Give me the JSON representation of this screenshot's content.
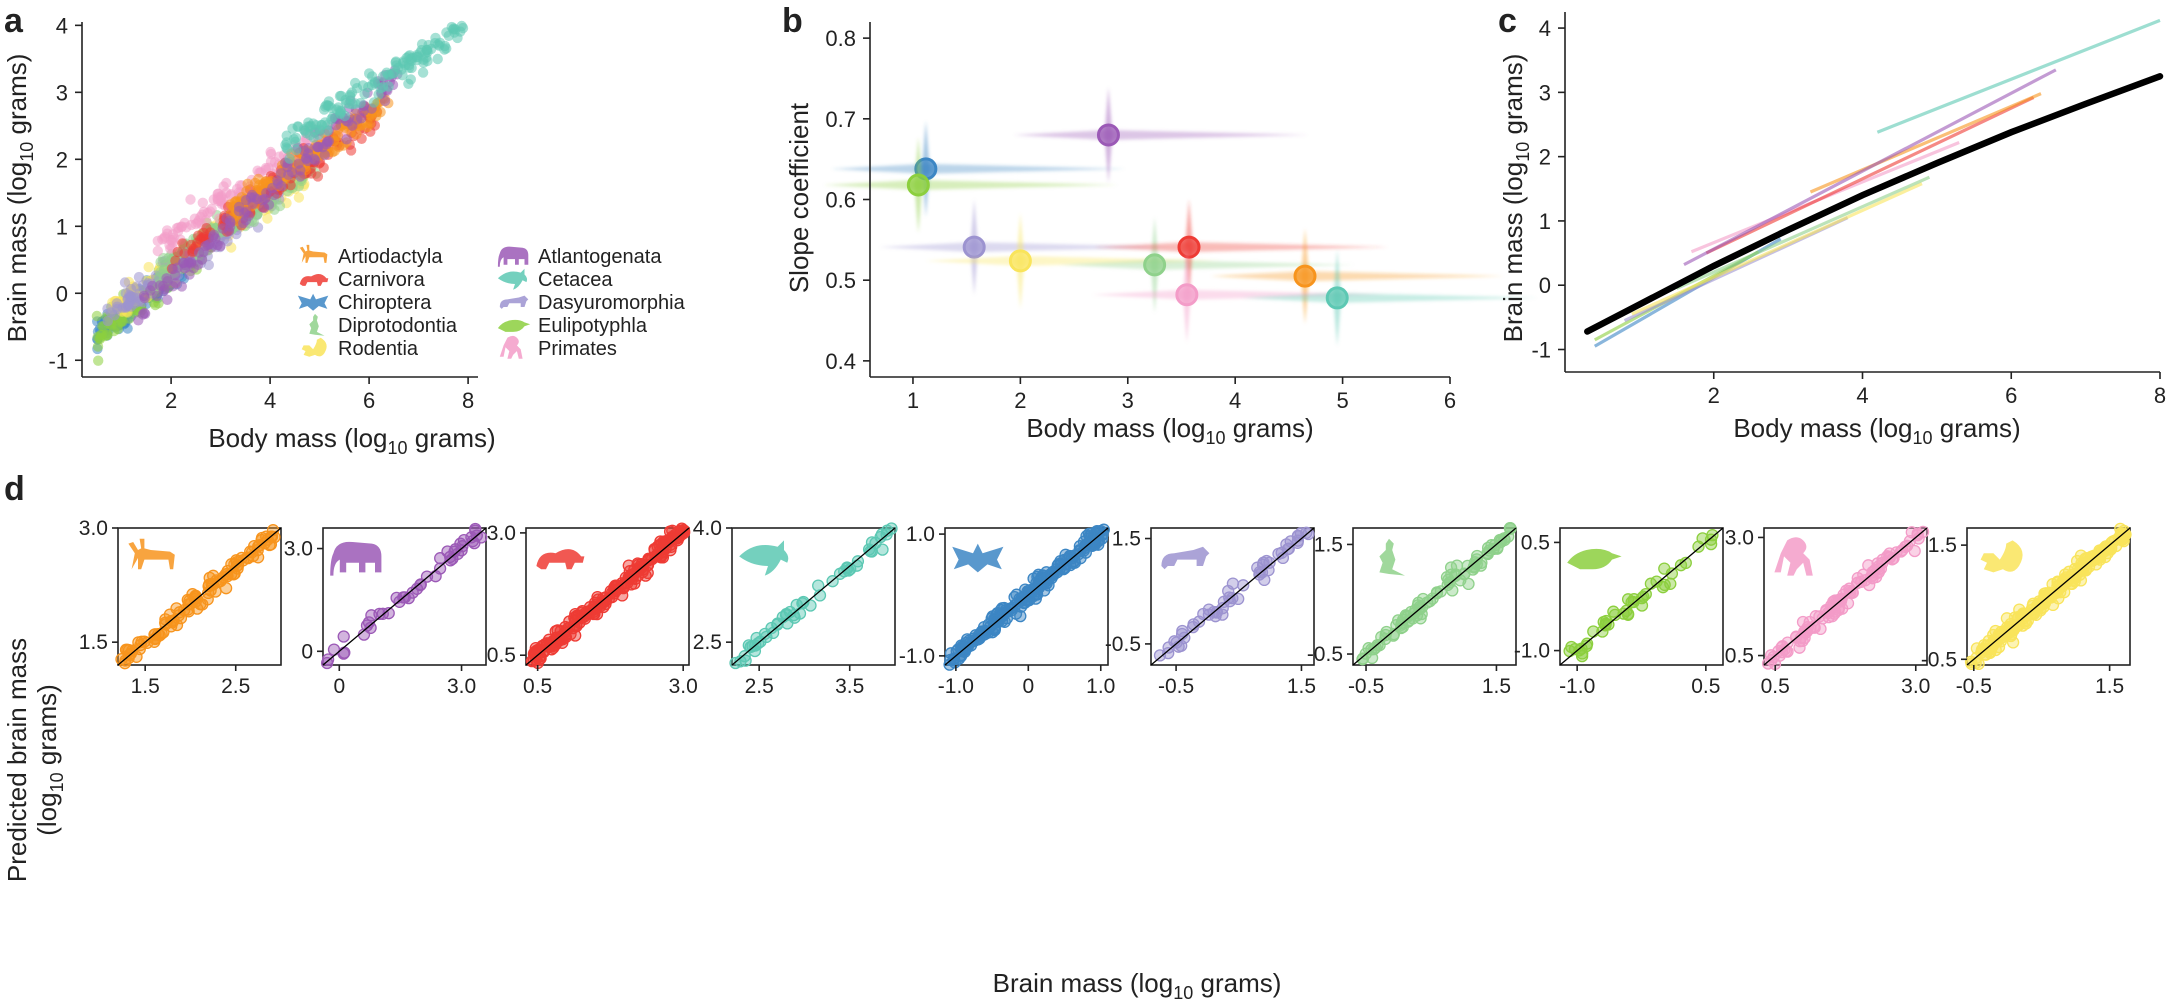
{
  "figure": {
    "panels": [
      {
        "id": "a",
        "letter": "a"
      },
      {
        "id": "b",
        "letter": "b"
      },
      {
        "id": "c",
        "letter": "c"
      },
      {
        "id": "d",
        "letter": "d"
      }
    ]
  },
  "clades": [
    {
      "name": "Artiodactyla",
      "color": "#F7941D",
      "icon": "deer-icon"
    },
    {
      "name": "Carnivora",
      "color": "#EE3B34",
      "icon": "ferret-icon"
    },
    {
      "name": "Chiroptera",
      "color": "#3C86C4",
      "icon": "bat-icon"
    },
    {
      "name": "Diprotodontia",
      "color": "#8FD18B",
      "icon": "kangaroo-icon"
    },
    {
      "name": "Rodentia",
      "color": "#F9E45B",
      "icon": "squirrel-icon"
    },
    {
      "name": "Atlantogenata",
      "color": "#9B59B6",
      "icon": "elephant-icon"
    },
    {
      "name": "Cetacea",
      "color": "#5CC8B3",
      "icon": "dolphin-icon"
    },
    {
      "name": "Dasyuromorphia",
      "color": "#9C93D0",
      "icon": "marsupial-icon"
    },
    {
      "name": "Eulipotyphla",
      "color": "#8CCF3E",
      "icon": "shrew-icon"
    },
    {
      "name": "Primates",
      "color": "#F39CC8",
      "icon": "primate-icon"
    }
  ],
  "chart_data": [
    {
      "panel": "a",
      "type": "scatter",
      "xlabel_main": "Body mass (log",
      "xlabel_sub": "10",
      "xlabel_end": " grams)",
      "ylabel_main": "Brain mass (log",
      "ylabel_sub": "10",
      "ylabel_end": " grams)",
      "xlim": [
        0.2,
        8.2
      ],
      "ylim": [
        -1.25,
        4.05
      ],
      "xticks": [
        "2",
        "4",
        "6",
        "8"
      ],
      "xtick_values": [
        2,
        4,
        6,
        8
      ],
      "yticks": [
        "-1",
        "0",
        "1",
        "2",
        "3",
        "4"
      ],
      "ytick_values": [
        -1,
        0,
        1,
        2,
        3,
        4
      ],
      "legend_position": "bottom-right",
      "clade_ranges": [
        {
          "clade": "Chiroptera",
          "x": [
            0.5,
            2.3
          ],
          "slope": 0.64
        },
        {
          "clade": "Eulipotyphla",
          "x": [
            0.5,
            2.9
          ],
          "slope": 0.62
        },
        {
          "clade": "Rodentia",
          "x": [
            0.8,
            4.8
          ],
          "slope": 0.52
        },
        {
          "clade": "Dasyuromorphia",
          "x": [
            0.7,
            4.2
          ],
          "slope": 0.54
        },
        {
          "clade": "Diprotodontia",
          "x": [
            1.7,
            5.0
          ],
          "slope": 0.52
        },
        {
          "clade": "Primates",
          "x": [
            1.7,
            5.5
          ],
          "slope": 0.48
        },
        {
          "clade": "Carnivora",
          "x": [
            2.0,
            6.2
          ],
          "slope": 0.54
        },
        {
          "clade": "Artiodactyla",
          "x": [
            3.2,
            6.4
          ],
          "slope": 0.5
        },
        {
          "clade": "Atlantogenata",
          "x": [
            1.2,
            6.6
          ],
          "slope": 0.68
        },
        {
          "clade": "Cetacea",
          "x": [
            4.3,
            7.9
          ],
          "slope": 0.48
        }
      ]
    },
    {
      "panel": "b",
      "type": "scatter",
      "xlabel_main": "Body mass (log",
      "xlabel_sub": "10",
      "xlabel_end": " grams)",
      "ylabel": "Slope coefficient",
      "xlim": [
        0.6,
        6.0
      ],
      "ylim": [
        0.38,
        0.82
      ],
      "xticks": [
        "1",
        "2",
        "3",
        "4",
        "5",
        "6"
      ],
      "xtick_values": [
        1,
        2,
        3,
        4,
        5,
        6
      ],
      "yticks": [
        "0.4",
        "0.5",
        "0.6",
        "0.7",
        "0.8"
      ],
      "ytick_values": [
        0.4,
        0.5,
        0.6,
        0.7,
        0.8
      ],
      "points": [
        {
          "clade": "Chiroptera",
          "x": 1.12,
          "y": 0.638
        },
        {
          "clade": "Eulipotyphla",
          "x": 1.05,
          "y": 0.618
        },
        {
          "clade": "Atlantogenata",
          "x": 2.82,
          "y": 0.68
        },
        {
          "clade": "Dasyuromorphia",
          "x": 1.57,
          "y": 0.541
        },
        {
          "clade": "Rodentia",
          "x": 2.0,
          "y": 0.524
        },
        {
          "clade": "Diprotodontia",
          "x": 3.25,
          "y": 0.519
        },
        {
          "clade": "Carnivora",
          "x": 3.57,
          "y": 0.541
        },
        {
          "clade": "Artiodactyla",
          "x": 4.65,
          "y": 0.505
        },
        {
          "clade": "Primates",
          "x": 3.55,
          "y": 0.482
        },
        {
          "clade": "Cetacea",
          "x": 4.95,
          "y": 0.478
        }
      ]
    },
    {
      "panel": "c",
      "type": "line",
      "xlabel_main": "Body mass (log",
      "xlabel_sub": "10",
      "xlabel_end": " grams)",
      "ylabel_main": "Brain mass (log",
      "ylabel_sub": "10",
      "ylabel_end": " grams)",
      "xlim": [
        0,
        8
      ],
      "ylim": [
        -1.35,
        4.25
      ],
      "xticks": [
        "2",
        "4",
        "6",
        "8"
      ],
      "xtick_values": [
        2,
        4,
        6,
        8
      ],
      "yticks": [
        "-1",
        "0",
        "1",
        "2",
        "3",
        "4"
      ],
      "ytick_values": [
        -1,
        0,
        1,
        2,
        3,
        4
      ],
      "overall_curve": [
        [
          0.3,
          -0.72
        ],
        [
          1.0,
          -0.3
        ],
        [
          2.0,
          0.3
        ],
        [
          3.0,
          0.86
        ],
        [
          4.0,
          1.4
        ],
        [
          5.0,
          1.9
        ],
        [
          6.0,
          2.38
        ],
        [
          7.0,
          2.82
        ],
        [
          8.0,
          3.25
        ]
      ],
      "clade_lines": [
        {
          "clade": "Chiroptera",
          "x1": 0.4,
          "y1": -0.95,
          "x2": 2.9,
          "y2": 0.72
        },
        {
          "clade": "Eulipotyphla",
          "x1": 0.4,
          "y1": -0.85,
          "x2": 2.6,
          "y2": 0.52
        },
        {
          "clade": "Dasyuromorphia",
          "x1": 0.8,
          "y1": -0.55,
          "x2": 3.8,
          "y2": 1.05
        },
        {
          "clade": "Rodentia",
          "x1": 0.9,
          "y1": -0.45,
          "x2": 4.8,
          "y2": 1.58
        },
        {
          "clade": "Diprotodontia",
          "x1": 1.5,
          "y1": -0.05,
          "x2": 4.9,
          "y2": 1.68
        },
        {
          "clade": "Primates",
          "x1": 1.7,
          "y1": 0.52,
          "x2": 5.3,
          "y2": 2.22
        },
        {
          "clade": "Carnivora",
          "x1": 1.9,
          "y1": 0.5,
          "x2": 6.3,
          "y2": 2.92
        },
        {
          "clade": "Artiodactyla",
          "x1": 3.3,
          "y1": 1.45,
          "x2": 6.4,
          "y2": 2.98
        },
        {
          "clade": "Atlantogenata",
          "x1": 1.6,
          "y1": 0.32,
          "x2": 6.6,
          "y2": 3.35
        },
        {
          "clade": "Cetacea",
          "x1": 4.2,
          "y1": 2.38,
          "x2": 8.0,
          "y2": 4.12
        }
      ]
    },
    {
      "panel": "d",
      "type": "scatter",
      "xlabel_main": "Brain mass (log",
      "xlabel_sub": "10",
      "xlabel_end": " grams)",
      "ylabel_line1": "Predicted brain mass",
      "ylabel_line2_main": "(log",
      "ylabel_line2_sub": "10",
      "ylabel_line2_end": " grams)",
      "subplots": [
        {
          "clade": "Artiodactyla",
          "icon": "deer-icon",
          "lim": [
            1.2,
            3.0
          ],
          "xticks": [
            "1.5",
            "2.5"
          ],
          "xtick_values": [
            1.5,
            2.5
          ],
          "yticks": [
            "3.0",
            "1.5"
          ],
          "ytick_values": [
            3.0,
            1.5
          ],
          "n": 110
        },
        {
          "clade": "Atlantogenata",
          "icon": "elephant-icon",
          "lim": [
            -0.4,
            3.6
          ],
          "xticks": [
            "0",
            "3.0"
          ],
          "xtick_values": [
            0,
            3.0
          ],
          "yticks": [
            "3.0",
            "0"
          ],
          "ytick_values": [
            3.0,
            0
          ],
          "n": 45
        },
        {
          "clade": "Carnivora",
          "icon": "ferret-icon",
          "lim": [
            0.3,
            3.1
          ],
          "xticks": [
            "0.5",
            "3.0"
          ],
          "xtick_values": [
            0.5,
            3.0
          ],
          "yticks": [
            "3.0",
            "0.5"
          ],
          "ytick_values": [
            3.0,
            0.5
          ],
          "n": 210
        },
        {
          "clade": "Cetacea",
          "icon": "dolphin-icon",
          "lim": [
            2.2,
            4.0
          ],
          "xticks": [
            "2.5",
            "3.5"
          ],
          "xtick_values": [
            2.5,
            3.5
          ],
          "yticks": [
            "4.0",
            "2.5"
          ],
          "ytick_values": [
            4.0,
            2.5
          ],
          "n": 55
        },
        {
          "clade": "Chiroptera",
          "icon": "bat-icon",
          "lim": [
            -1.15,
            1.1
          ],
          "xticks": [
            "-1.0",
            "0",
            "1.0"
          ],
          "xtick_values": [
            -1.0,
            0,
            1.0
          ],
          "yticks": [
            "1.0",
            "-1.0"
          ],
          "ytick_values": [
            1.0,
            -1.0
          ],
          "n": 220
        },
        {
          "clade": "Dasyuromorphia",
          "icon": "marsupial-icon",
          "lim": [
            -0.9,
            1.7
          ],
          "xticks": [
            "-0.5",
            "1.5"
          ],
          "xtick_values": [
            -0.5,
            1.5
          ],
          "yticks": [
            "1.5",
            "-0.5"
          ],
          "ytick_values": [
            1.5,
            -0.5
          ],
          "n": 55
        },
        {
          "clade": "Diprotodontia",
          "icon": "kangaroo-icon",
          "lim": [
            -0.7,
            1.8
          ],
          "xticks": [
            "-0.5",
            "1.5"
          ],
          "xtick_values": [
            -0.5,
            1.5
          ],
          "yticks": [
            "1.5",
            "-0.5"
          ],
          "ytick_values": [
            1.5,
            -0.5
          ],
          "n": 90
        },
        {
          "clade": "Eulipotyphla",
          "icon": "shrew-icon",
          "lim": [
            -1.2,
            0.7
          ],
          "xticks": [
            "-1.0",
            "0.5"
          ],
          "xtick_values": [
            -1.0,
            0.5
          ],
          "yticks": [
            "0.5",
            "-1.0"
          ],
          "ytick_values": [
            0.5,
            -1.0
          ],
          "n": 45
        },
        {
          "clade": "Primates",
          "icon": "primate-icon",
          "lim": [
            0.3,
            3.2
          ],
          "xticks": [
            "0.5",
            "3.0"
          ],
          "xtick_values": [
            0.5,
            3.0
          ],
          "yticks": [
            "3.0",
            "0.5"
          ],
          "ytick_values": [
            3.0,
            0.5
          ],
          "n": 110
        },
        {
          "clade": "Rodentia",
          "icon": "squirrel-icon",
          "lim": [
            -0.6,
            1.8
          ],
          "xticks": [
            "-0.5",
            "1.5"
          ],
          "xtick_values": [
            -0.5,
            1.5
          ],
          "yticks": [
            "1.5",
            "-0.5"
          ],
          "ytick_values": [
            1.5,
            -0.5
          ],
          "n": 230
        }
      ]
    }
  ]
}
